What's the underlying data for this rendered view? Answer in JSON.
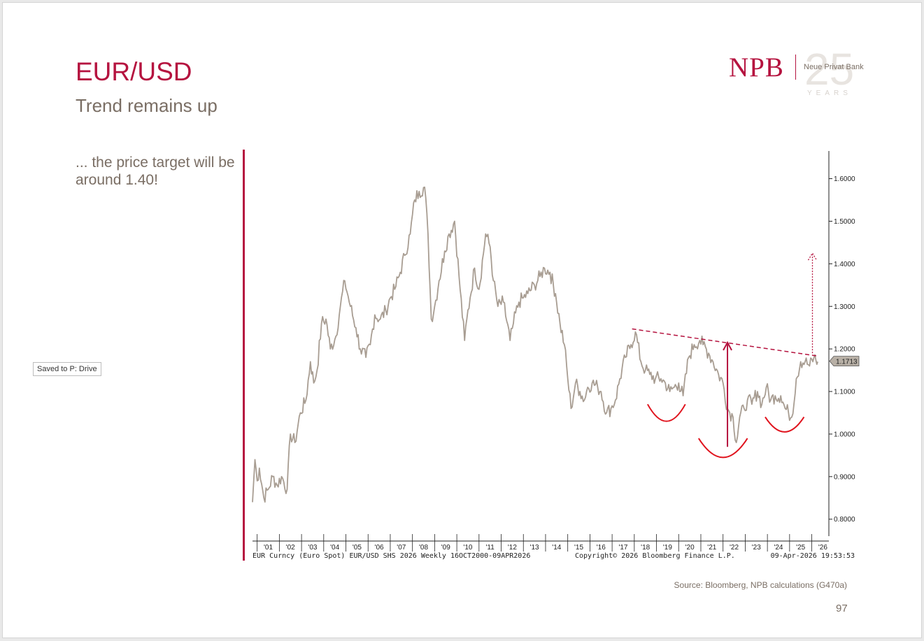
{
  "header": {
    "title": "EUR/USD",
    "subtitle": "Trend remains up",
    "note": "... the price target will be around 1.40!"
  },
  "badge": {
    "saved": "Saved to P: Drive"
  },
  "brand": {
    "logo": "NPB",
    "tagline": "Neue Privat Bank",
    "anniversary": "25",
    "years": "YEARS"
  },
  "footer": {
    "source": "Source: Bloomberg, NPB calculations (G470a)",
    "page_number": "97"
  },
  "colors": {
    "accent": "#b5133f",
    "price_line": "#a89d92",
    "annotation": "#e0141e"
  },
  "chart_data": {
    "type": "line",
    "title": "",
    "xlabel": "",
    "ylabel": "",
    "ylim": [
      0.77,
      1.665
    ],
    "xlim": [
      2000.79,
      2026.55
    ],
    "yticks": [
      0.8,
      0.9,
      1.0,
      1.1,
      1.2,
      1.3,
      1.4,
      1.5,
      1.6
    ],
    "ytick_labels": [
      "0.8000",
      "0.9000",
      "1.0000",
      "1.1000",
      "1.2000",
      "1.3000",
      "1.4000",
      "1.5000",
      "1.6000"
    ],
    "year_labels": [
      "'01",
      "'02",
      "'03",
      "'04",
      "'05",
      "'06",
      "'07",
      "'08",
      "'09",
      "'10",
      "'11",
      "'12",
      "'13",
      "'14",
      "'15",
      "'16",
      "'17",
      "'18",
      "'19",
      "'20",
      "'21",
      "'22",
      "'23",
      "'24",
      "'25",
      "'26"
    ],
    "y_axis_side": "right",
    "grid": false,
    "last_value": 1.1713,
    "last_value_label": "1.1713",
    "series": [
      {
        "x": [
          2000.79,
          2000.9,
          2001.0,
          2001.1,
          2001.3,
          2001.5,
          2001.7,
          2001.9,
          2002.1,
          2002.35,
          2002.5,
          2002.7,
          2002.95,
          2003.2,
          2003.4,
          2003.55,
          2003.7,
          2003.9,
          2004.1,
          2004.3,
          2004.55,
          2004.75,
          2004.95,
          2005.2,
          2005.45,
          2005.65,
          2005.9,
          2006.1,
          2006.3,
          2006.55,
          2006.8,
          2007.0,
          2007.2,
          2007.45,
          2007.65,
          2007.9,
          2008.1,
          2008.3,
          2008.55,
          2008.7,
          2008.85,
          2009.0,
          2009.2,
          2009.45,
          2009.65,
          2009.9,
          2010.1,
          2010.35,
          2010.45,
          2010.6,
          2010.8,
          2011.0,
          2011.3,
          2011.5,
          2011.65,
          2011.85,
          2012.1,
          2012.4,
          2012.55,
          2012.8,
          2013.0,
          2013.2,
          2013.5,
          2013.75,
          2013.95,
          2014.2,
          2014.45,
          2014.65,
          2014.85,
          2015.0,
          2015.15,
          2015.35,
          2015.55,
          2015.75,
          2015.9,
          2016.1,
          2016.35,
          2016.5,
          2016.75,
          2016.95,
          2017.15,
          2017.35,
          2017.6,
          2017.85,
          2018.05,
          2018.3,
          2018.5,
          2018.7,
          2018.95,
          2019.2,
          2019.4,
          2019.6,
          2019.8,
          2020.0,
          2020.2,
          2020.45,
          2020.7,
          2020.95,
          2021.1,
          2021.35,
          2021.55,
          2021.8,
          2022.0,
          2022.2,
          2022.45,
          2022.6,
          2022.75,
          2022.95,
          2023.1,
          2023.3,
          2023.55,
          2023.75,
          2023.95,
          2024.15,
          2024.35,
          2024.6,
          2024.8,
          2024.95,
          2025.1,
          2025.3,
          2025.5,
          2025.7,
          2025.9,
          2026.1,
          2026.27
        ],
        "y": [
          0.84,
          0.94,
          0.89,
          0.92,
          0.85,
          0.87,
          0.9,
          0.88,
          0.9,
          0.87,
          1.0,
          0.98,
          1.05,
          1.08,
          1.17,
          1.12,
          1.15,
          1.26,
          1.27,
          1.2,
          1.23,
          1.3,
          1.36,
          1.3,
          1.25,
          1.2,
          1.18,
          1.21,
          1.28,
          1.27,
          1.29,
          1.32,
          1.34,
          1.38,
          1.42,
          1.47,
          1.55,
          1.57,
          1.58,
          1.47,
          1.27,
          1.3,
          1.36,
          1.43,
          1.47,
          1.5,
          1.37,
          1.22,
          1.27,
          1.32,
          1.39,
          1.34,
          1.47,
          1.44,
          1.36,
          1.3,
          1.31,
          1.22,
          1.26,
          1.31,
          1.32,
          1.33,
          1.35,
          1.37,
          1.39,
          1.38,
          1.33,
          1.26,
          1.21,
          1.13,
          1.06,
          1.12,
          1.1,
          1.08,
          1.11,
          1.12,
          1.11,
          1.1,
          1.05,
          1.06,
          1.08,
          1.13,
          1.18,
          1.21,
          1.24,
          1.17,
          1.15,
          1.14,
          1.13,
          1.13,
          1.12,
          1.1,
          1.11,
          1.12,
          1.09,
          1.18,
          1.21,
          1.22,
          1.21,
          1.19,
          1.17,
          1.14,
          1.12,
          1.06,
          1.04,
          0.98,
          1.04,
          1.06,
          1.08,
          1.07,
          1.1,
          1.07,
          1.11,
          1.08,
          1.09,
          1.09,
          1.06,
          1.05,
          1.04,
          1.13,
          1.17,
          1.17,
          1.16,
          1.18,
          1.17
        ]
      }
    ],
    "annotations": {
      "resistance_line": {
        "from": [
          2017.9,
          1.247
        ],
        "to": [
          2026.3,
          1.183
        ]
      },
      "target_arrow": {
        "x": 2026.03,
        "from": 1.19,
        "to": 1.425
      },
      "measured_move_arrow": {
        "x": 2022.2,
        "from": 0.97,
        "to": 1.215
      },
      "shoulders": [
        {
          "x_start": 2018.6,
          "x_end": 2020.3,
          "y_top": 1.07,
          "y_bottom": 1.03
        },
        {
          "x_start": 2020.9,
          "x_end": 2023.1,
          "y_top": 0.99,
          "y_bottom": 0.945
        },
        {
          "x_start": 2023.9,
          "x_end": 2025.65,
          "y_top": 1.04,
          "y_bottom": 1.005
        }
      ]
    },
    "footnote_left": "EUR Curncy (Euro Spot) EUR/USD SHS 2026 Weekly 16OCT2000-09APR2026",
    "footnote_center": "Copyright© 2026 Bloomberg Finance L.P.",
    "footnote_right": "09-Apr-2026 19:53:53"
  }
}
